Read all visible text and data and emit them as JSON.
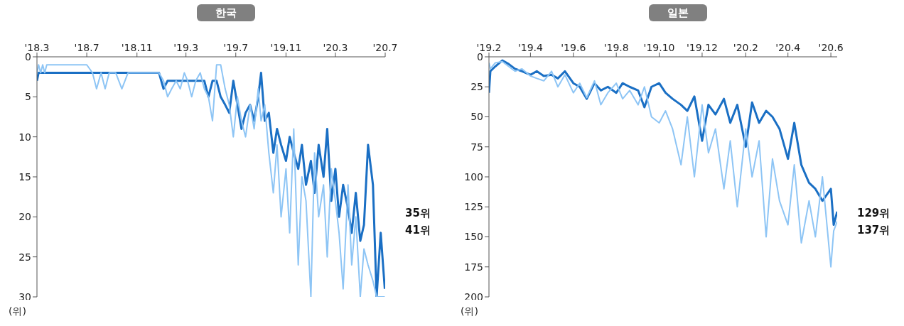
{
  "chart_data": [
    {
      "type": "line",
      "title": "한국",
      "ylabel": "(위)",
      "annotations": [
        "35위",
        "41위"
      ],
      "x": [
        "2018-03-01",
        "2018-03-05",
        "2018-03-10",
        "2018-03-15",
        "2018-03-20",
        "2018-03-25",
        "2018-04-01",
        "2018-04-10",
        "2018-04-20",
        "2018-05-01",
        "2018-06-01",
        "2018-07-01",
        "2018-07-15",
        "2018-07-25",
        "2018-08-05",
        "2018-08-15",
        "2018-08-25",
        "2018-09-10",
        "2018-09-25",
        "2018-10-10",
        "2018-10-25",
        "2018-11-10",
        "2018-11-25",
        "2018-12-10",
        "2018-12-25",
        "2019-01-05",
        "2019-01-15",
        "2019-01-25",
        "2019-02-05",
        "2019-02-15",
        "2019-02-25",
        "2019-03-05",
        "2019-03-15",
        "2019-03-25",
        "2019-04-05",
        "2019-04-15",
        "2019-04-25",
        "2019-05-05",
        "2019-05-15",
        "2019-05-25",
        "2019-06-05",
        "2019-06-15",
        "2019-06-25",
        "2019-07-05",
        "2019-07-15",
        "2019-07-25",
        "2019-08-05",
        "2019-08-15",
        "2019-08-25",
        "2019-09-01",
        "2019-09-10",
        "2019-09-20",
        "2019-10-01",
        "2019-10-10",
        "2019-10-20",
        "2019-11-01",
        "2019-11-10",
        "2019-11-20",
        "2019-12-01",
        "2019-12-10",
        "2019-12-20",
        "2020-01-01",
        "2020-01-10",
        "2020-01-20",
        "2020-02-01",
        "2020-02-10",
        "2020-02-20",
        "2020-03-01",
        "2020-03-10",
        "2020-03-20",
        "2020-04-01",
        "2020-04-10",
        "2020-04-20",
        "2020-05-01",
        "2020-05-10",
        "2020-05-20",
        "2020-06-01",
        "2020-06-10",
        "2020-06-20",
        "2020-06-30"
      ],
      "series": [
        {
          "color": "#1a6fc4",
          "values": [
            3,
            2,
            2,
            2,
            2,
            2,
            2,
            2,
            2,
            2,
            2,
            2,
            2,
            2,
            2,
            2,
            2,
            2,
            2,
            2,
            2,
            2,
            2,
            2,
            2,
            4,
            3,
            3,
            3,
            3,
            3,
            3,
            3,
            3,
            3,
            3,
            5,
            3,
            3,
            5,
            6,
            7,
            3,
            6,
            9,
            7,
            6,
            8,
            5,
            2,
            8,
            7,
            12,
            9,
            11,
            13,
            10,
            12,
            14,
            11,
            16,
            13,
            17,
            11,
            15,
            9,
            18,
            14,
            20,
            16,
            19,
            22,
            17,
            23,
            21,
            11,
            16,
            30,
            22,
            29
          ]
        },
        {
          "color": "#8ec5f5",
          "values": [
            2,
            1,
            2,
            1,
            2,
            1,
            1,
            1,
            1,
            1,
            1,
            1,
            2,
            4,
            2,
            4,
            2,
            2,
            4,
            2,
            2,
            2,
            2,
            2,
            2,
            3,
            5,
            4,
            3,
            4,
            2,
            3,
            5,
            3,
            2,
            4,
            5,
            8,
            1,
            1,
            4,
            6,
            10,
            5,
            8,
            10,
            6,
            9,
            4,
            8,
            6,
            12,
            17,
            11,
            20,
            14,
            22,
            9,
            26,
            15,
            18,
            30,
            12,
            20,
            16,
            25,
            14,
            18,
            22,
            29,
            16,
            26,
            20,
            30,
            24,
            26,
            28,
            30,
            30,
            30
          ]
        }
      ],
      "xlim": [
        "2018-03-01",
        "2020-07-01"
      ],
      "xticks": [
        {
          "value": "2018-03-01",
          "label": "'18.3"
        },
        {
          "value": "2018-07-01",
          "label": "'18.7"
        },
        {
          "value": "2018-11-01",
          "label": "'18.11"
        },
        {
          "value": "2019-03-01",
          "label": "'19.3"
        },
        {
          "value": "2019-07-01",
          "label": "'19.7"
        },
        {
          "value": "2019-11-01",
          "label": "'19.11"
        },
        {
          "value": "2020-03-01",
          "label": "'20.3"
        },
        {
          "value": "2020-07-01",
          "label": "'20.7"
        }
      ],
      "ylim": [
        30,
        0
      ],
      "yticks": [
        0,
        5,
        10,
        15,
        20,
        25,
        30
      ],
      "line_style": "solid"
    },
    {
      "type": "line",
      "title": "일본",
      "ylabel": "(위)",
      "annotations": [
        "129위",
        "137위"
      ],
      "x": [
        "2019-02-01",
        "2019-02-03",
        "2019-02-10",
        "2019-02-20",
        "2019-03-01",
        "2019-03-10",
        "2019-03-20",
        "2019-04-01",
        "2019-04-10",
        "2019-04-20",
        "2019-05-01",
        "2019-05-10",
        "2019-05-20",
        "2019-06-01",
        "2019-06-10",
        "2019-06-20",
        "2019-07-01",
        "2019-07-10",
        "2019-07-20",
        "2019-08-01",
        "2019-08-10",
        "2019-08-20",
        "2019-09-01",
        "2019-09-10",
        "2019-09-20",
        "2019-10-01",
        "2019-10-10",
        "2019-10-20",
        "2019-11-01",
        "2019-11-10",
        "2019-11-20",
        "2019-12-01",
        "2019-12-10",
        "2019-12-20",
        "2020-01-01",
        "2020-01-10",
        "2020-01-20",
        "2020-02-01",
        "2020-02-10",
        "2020-02-20",
        "2020-03-01",
        "2020-03-10",
        "2020-03-20",
        "2020-04-01",
        "2020-04-10",
        "2020-04-20",
        "2020-05-01",
        "2020-05-10",
        "2020-05-20",
        "2020-06-01",
        "2020-06-05",
        "2020-06-10"
      ],
      "series": [
        {
          "color": "#1a6fc4",
          "values": [
            30,
            12,
            8,
            3,
            6,
            10,
            12,
            15,
            12,
            16,
            15,
            18,
            12,
            22,
            25,
            35,
            22,
            28,
            25,
            30,
            22,
            25,
            28,
            42,
            25,
            22,
            30,
            35,
            40,
            45,
            33,
            70,
            40,
            48,
            35,
            55,
            40,
            75,
            38,
            55,
            45,
            50,
            60,
            85,
            55,
            90,
            105,
            110,
            120,
            110,
            140,
            129
          ]
        },
        {
          "color": "#8ec5f5",
          "values": [
            5,
            10,
            5,
            4,
            8,
            12,
            10,
            16,
            18,
            20,
            12,
            25,
            15,
            30,
            22,
            34,
            20,
            40,
            30,
            22,
            35,
            28,
            40,
            25,
            50,
            55,
            45,
            60,
            90,
            50,
            100,
            40,
            80,
            60,
            110,
            70,
            125,
            60,
            100,
            70,
            150,
            85,
            120,
            140,
            90,
            155,
            120,
            150,
            100,
            175,
            145,
            137
          ]
        }
      ],
      "xlim": [
        "2019-02-01",
        "2020-06-10"
      ],
      "xticks": [
        {
          "value": "2019-02-01",
          "label": "'19.2"
        },
        {
          "value": "2019-04-01",
          "label": "'19.4"
        },
        {
          "value": "2019-06-01",
          "label": "'19.6"
        },
        {
          "value": "2019-08-01",
          "label": "'19.8"
        },
        {
          "value": "2019-10-01",
          "label": "'19.10"
        },
        {
          "value": "2019-12-01",
          "label": "'19.12"
        },
        {
          "value": "2020-02-01",
          "label": "'20.2"
        },
        {
          "value": "2020-04-01",
          "label": "'20.4"
        },
        {
          "value": "2020-06-01",
          "label": "'20.6"
        }
      ],
      "ylim": [
        200,
        0
      ],
      "yticks": [
        0,
        25,
        50,
        75,
        100,
        125,
        150,
        175,
        200
      ],
      "line_style": "solid"
    }
  ]
}
